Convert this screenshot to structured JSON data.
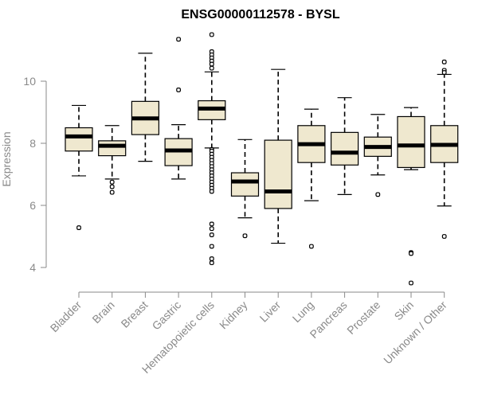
{
  "chart_data": {
    "type": "boxplot",
    "title": "ENSG00000112578 - BYSL",
    "xlabel": "",
    "ylabel": "Expression",
    "ylim": [
      3.3,
      12.2
    ],
    "yticks": [
      4,
      6,
      8,
      10
    ],
    "colors": {
      "box_fill": "#efe8cf",
      "box_stroke": "#000000",
      "axis": "#8a8a8a"
    },
    "categories": [
      "Bladder",
      "Brain",
      "Breast",
      "Gastric",
      "Hematopoietic cells",
      "Kidney",
      "Liver",
      "Lung",
      "Pancreas",
      "Prostate",
      "Skin",
      "Unknown / Other"
    ],
    "boxes": [
      {
        "name": "Bladder",
        "whisker_low": 6.95,
        "q1": 7.75,
        "median": 8.22,
        "q3": 8.5,
        "whisker_high": 9.22,
        "outliers": [
          5.28
        ]
      },
      {
        "name": "Brain",
        "whisker_low": 6.85,
        "q1": 7.6,
        "median": 7.92,
        "q3": 8.08,
        "whisker_high": 8.57,
        "outliers": [
          6.75,
          6.6,
          6.42
        ]
      },
      {
        "name": "Breast",
        "whisker_low": 7.42,
        "q1": 8.28,
        "median": 8.8,
        "q3": 9.35,
        "whisker_high": 10.9,
        "outliers": []
      },
      {
        "name": "Gastric",
        "whisker_low": 6.85,
        "q1": 7.28,
        "median": 7.77,
        "q3": 8.15,
        "whisker_high": 8.6,
        "outliers": [
          9.72,
          11.35
        ]
      },
      {
        "name": "Hematopoietic cells",
        "whisker_low": 7.85,
        "q1": 8.76,
        "median": 9.12,
        "q3": 9.37,
        "whisker_high": 10.3,
        "outliers": [
          11.5,
          10.95,
          10.85,
          10.75,
          10.65,
          10.55,
          10.42,
          7.8,
          7.75,
          7.65,
          7.55,
          7.45,
          7.35,
          7.25,
          7.15,
          7.05,
          6.95,
          6.85,
          6.75,
          6.65,
          6.55,
          6.45,
          5.4,
          5.25,
          5.05,
          4.68,
          4.28,
          4.15
        ]
      },
      {
        "name": "Kidney",
        "whisker_low": 5.6,
        "q1": 6.3,
        "median": 6.77,
        "q3": 7.05,
        "whisker_high": 8.12,
        "outliers": [
          5.02
        ]
      },
      {
        "name": "Liver",
        "whisker_low": 4.78,
        "q1": 5.9,
        "median": 6.45,
        "q3": 8.1,
        "whisker_high": 10.38,
        "outliers": []
      },
      {
        "name": "Lung",
        "whisker_low": 6.15,
        "q1": 7.38,
        "median": 7.97,
        "q3": 8.57,
        "whisker_high": 9.1,
        "outliers": [
          4.68
        ]
      },
      {
        "name": "Pancreas",
        "whisker_low": 6.35,
        "q1": 7.3,
        "median": 7.7,
        "q3": 8.35,
        "whisker_high": 9.47,
        "outliers": []
      },
      {
        "name": "Prostate",
        "whisker_low": 6.98,
        "q1": 7.58,
        "median": 7.88,
        "q3": 8.2,
        "whisker_high": 8.93,
        "outliers": [
          6.35
        ]
      },
      {
        "name": "Skin",
        "whisker_low": 7.15,
        "q1": 7.22,
        "median": 7.93,
        "q3": 8.86,
        "whisker_high": 9.15,
        "outliers": [
          4.48,
          4.45,
          3.5
        ]
      },
      {
        "name": "Unknown / Other",
        "whisker_low": 5.98,
        "q1": 7.38,
        "median": 7.95,
        "q3": 8.57,
        "whisker_high": 10.22,
        "outliers": [
          10.62,
          10.35,
          10.28,
          5.0
        ]
      }
    ]
  }
}
